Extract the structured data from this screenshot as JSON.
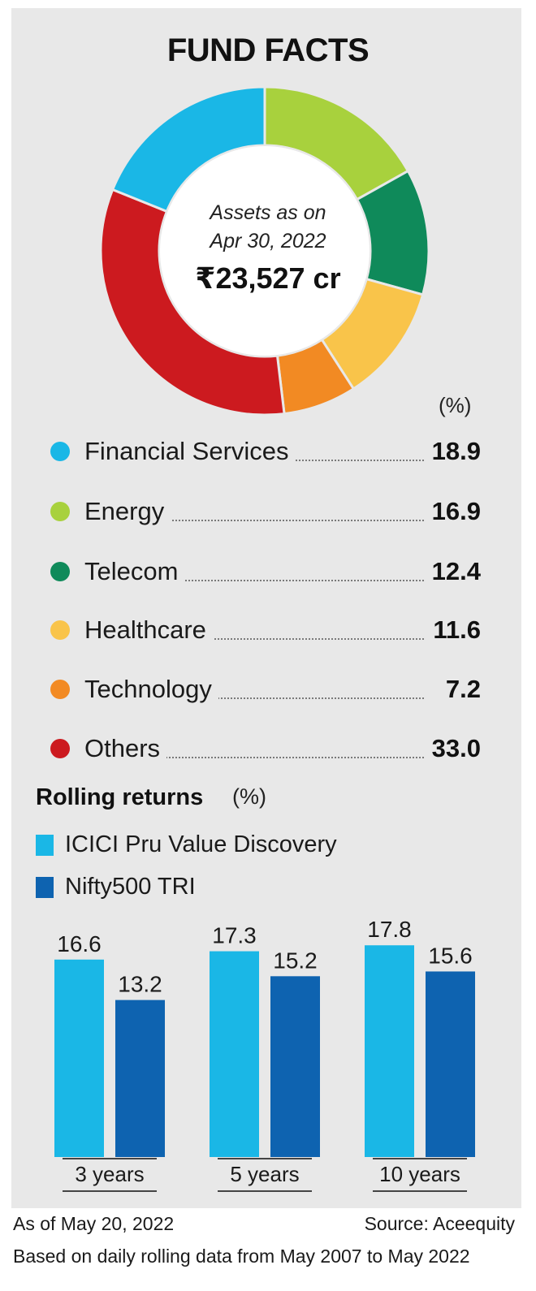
{
  "chart_data": [
    {
      "type": "pie",
      "title": "FUND FACTS",
      "center_text": [
        "Assets as on",
        "Apr 30, 2022"
      ],
      "center_value": "₹23,527 cr",
      "unit": "(%)",
      "slices": [
        {
          "label": "Financial Services",
          "value": 18.9,
          "display": "18.9",
          "color": "#1ab7e6"
        },
        {
          "label": "Energy",
          "value": 16.9,
          "display": "16.9",
          "color": "#a8d13d"
        },
        {
          "label": "Telecom",
          "value": 12.4,
          "display": "12.4",
          "color": "#0f8a5a"
        },
        {
          "label": "Healthcare",
          "value": 11.6,
          "display": "11.6",
          "color": "#f9c44a"
        },
        {
          "label": "Technology",
          "value": 7.2,
          "display": "7.2",
          "color": "#f28a23"
        },
        {
          "label": "Others",
          "value": 33.0,
          "display": "33.0",
          "color": "#cc1a1f"
        }
      ]
    },
    {
      "type": "bar",
      "title": "Rolling returns",
      "unit": "(%)",
      "categories": [
        "3 years",
        "5 years",
        "10 years"
      ],
      "series": [
        {
          "name": "ICICI Pru Value Discovery",
          "values": [
            16.6,
            17.3,
            17.8
          ],
          "labels": [
            "16.6",
            "17.3",
            "17.8"
          ],
          "color": "#1ab7e6"
        },
        {
          "name": "Nifty500 TRI",
          "values": [
            13.2,
            15.2,
            15.6
          ],
          "labels": [
            "13.2",
            "15.2",
            "15.6"
          ],
          "color": "#0e63b0"
        }
      ],
      "ylim": [
        0,
        20
      ]
    }
  ],
  "notes": {
    "as_of": "As of May 20, 2022",
    "source": "Source: Aceequity",
    "basis": "Based on daily rolling data from May 2007 to May 2022"
  }
}
